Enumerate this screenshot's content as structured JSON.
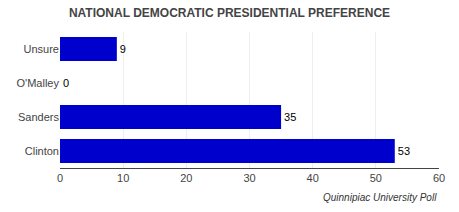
{
  "chart_data": {
    "type": "bar",
    "orientation": "horizontal",
    "title": "NATIONAL DEMOCRATIC PRESIDENTIAL PREFERENCE",
    "categories": [
      "Clinton",
      "Sanders",
      "O'Malley",
      "Unsure"
    ],
    "values": [
      53,
      35,
      0,
      9
    ],
    "color": "#0000CC",
    "xlim": [
      0,
      60
    ],
    "xticks": [
      0,
      10,
      20,
      30,
      40,
      50,
      60
    ],
    "grid": true,
    "data_labels": true,
    "annotations": [
      "Quinnipiac University Poll"
    ]
  }
}
